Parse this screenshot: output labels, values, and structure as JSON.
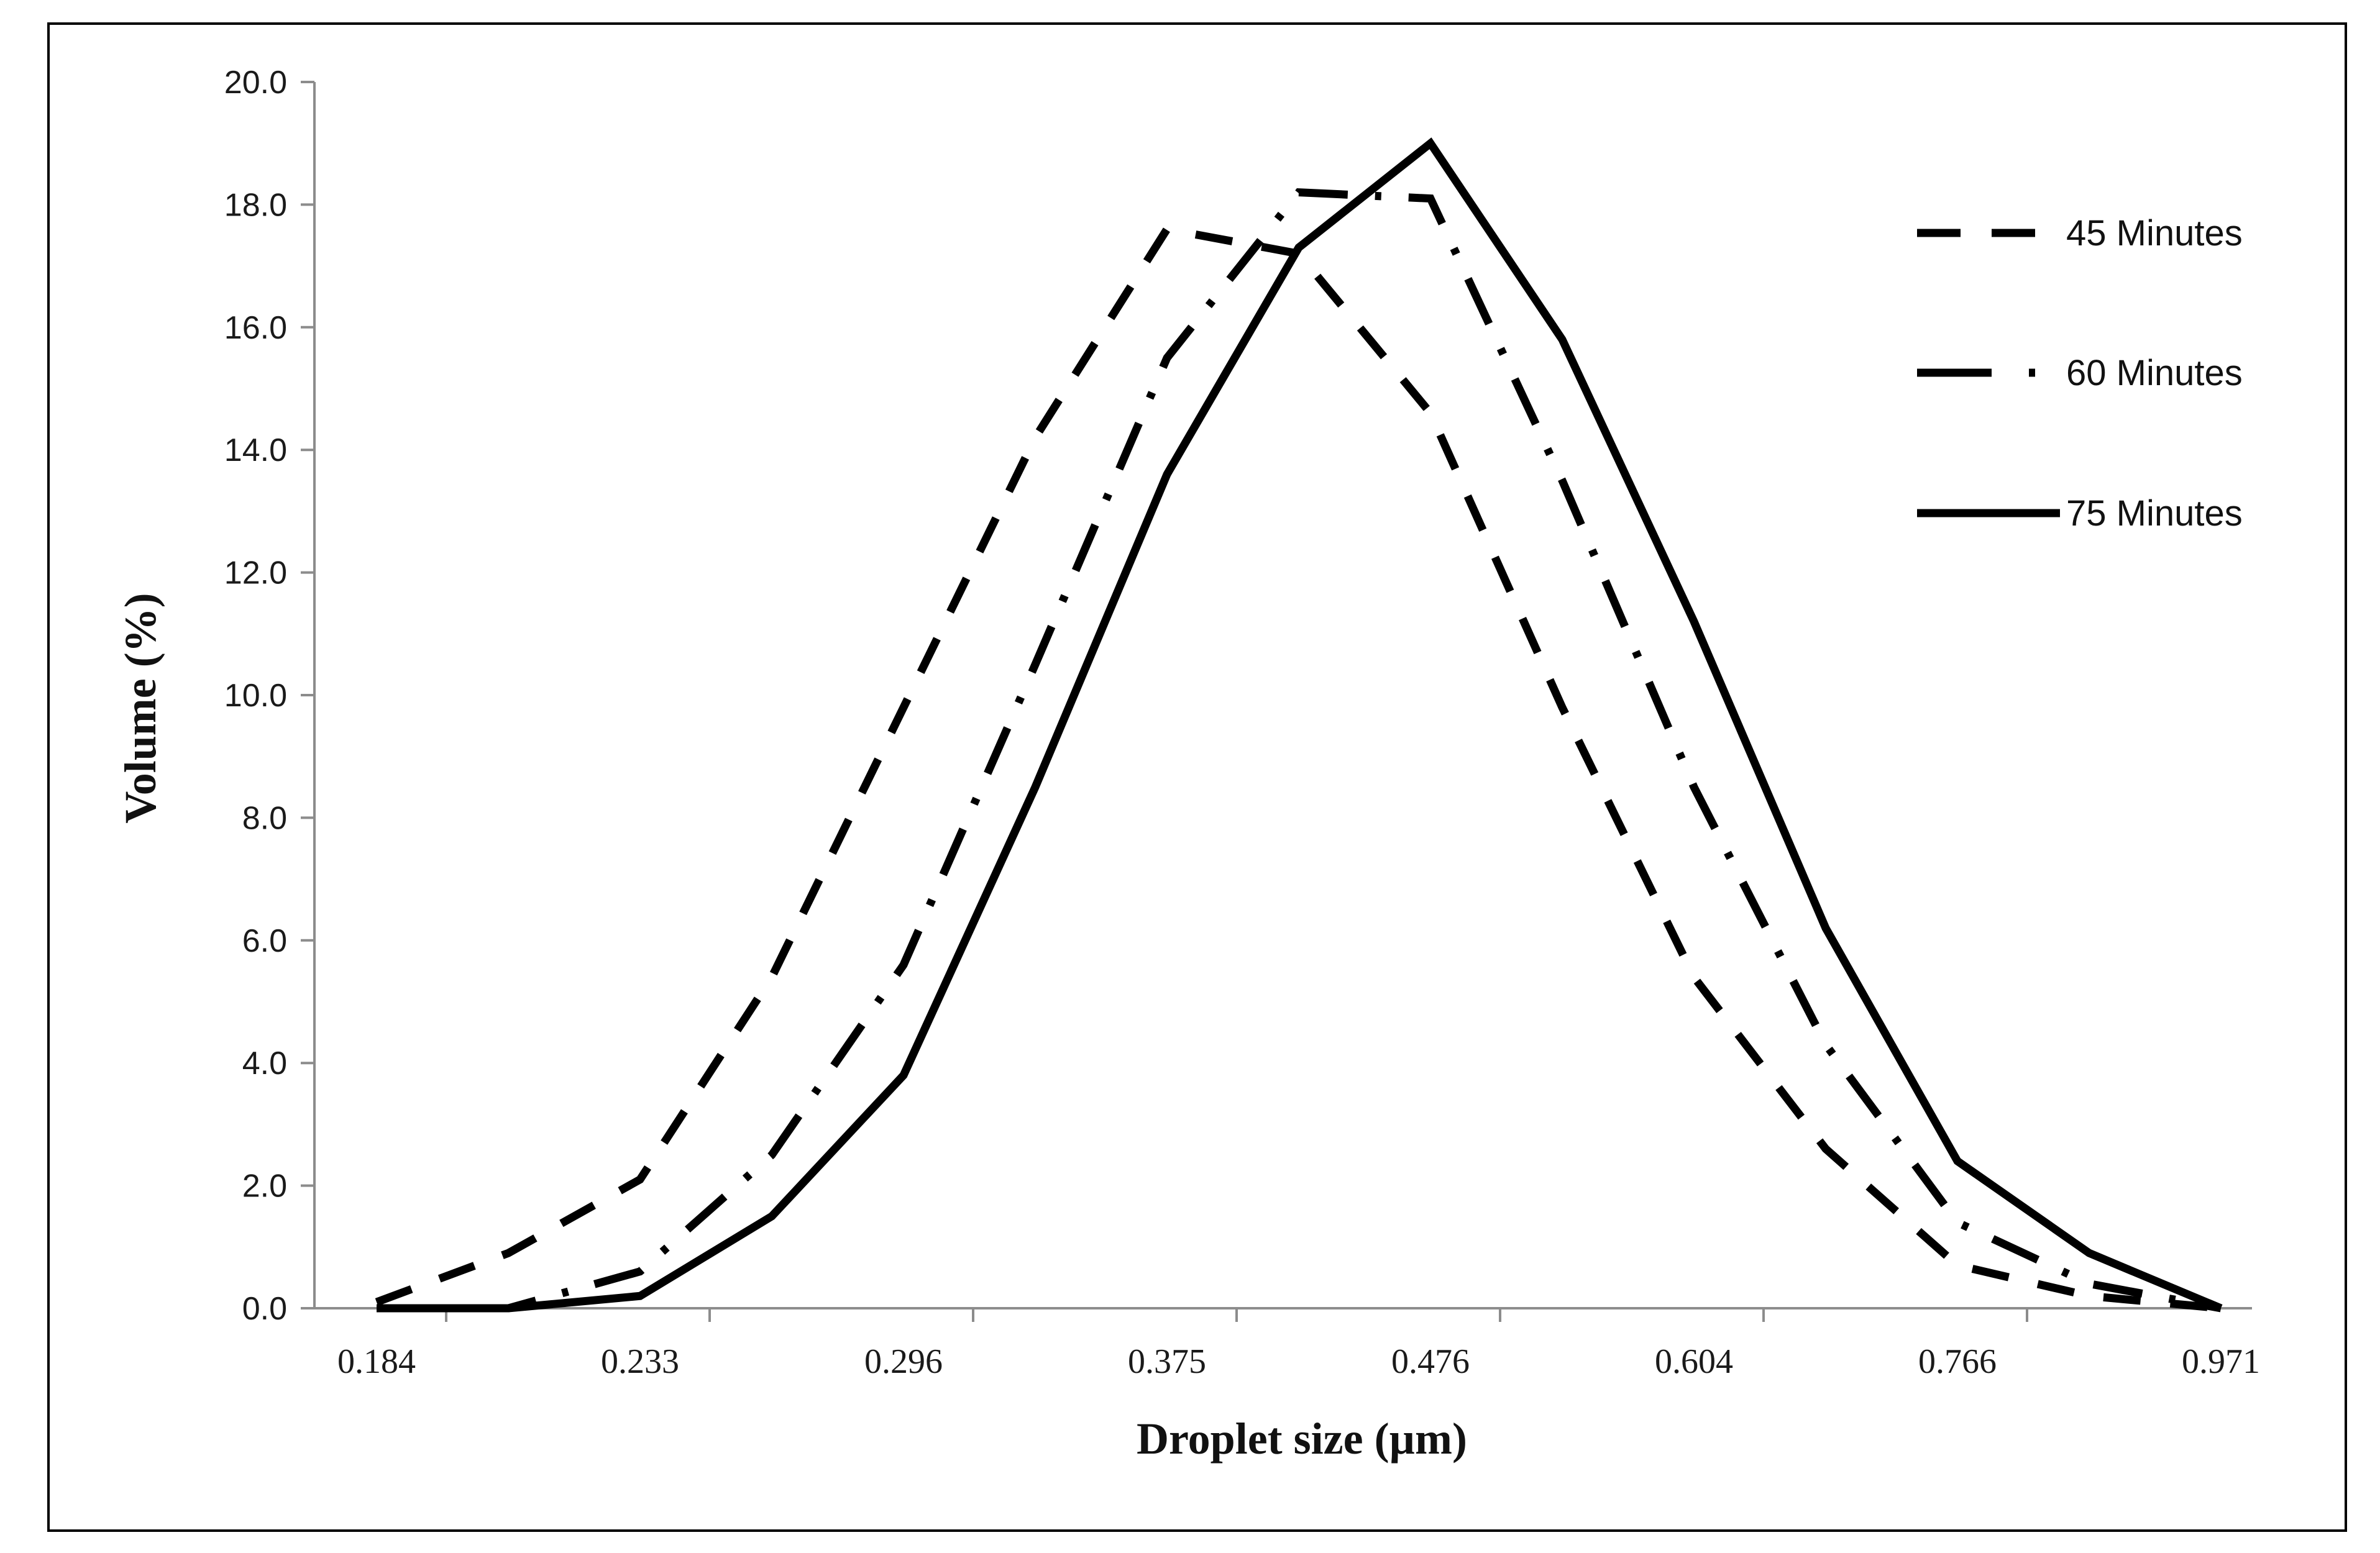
{
  "chart_data": {
    "type": "line",
    "title": "",
    "xlabel": "Droplet size (µm)",
    "ylabel": "Volume (%)",
    "ylim": [
      0,
      20
    ],
    "y_ticks": [
      "0.0",
      "2.0",
      "4.0",
      "6.0",
      "8.0",
      "10.0",
      "12.0",
      "14.0",
      "16.0",
      "18.0",
      "20.0"
    ],
    "x_tick_labels": [
      "0.184",
      "0.233",
      "0.296",
      "0.375",
      "0.476",
      "0.604",
      "0.766",
      "0.971"
    ],
    "categories": [
      "0.184",
      "0.207",
      "0.233",
      "0.263",
      "0.296",
      "0.334",
      "0.375",
      "0.423",
      "0.476",
      "0.536",
      "0.604",
      "0.681",
      "0.766",
      "0.863",
      "0.971"
    ],
    "grid": false,
    "legend_position": "top-right",
    "series": [
      {
        "name": "45 Minutes",
        "dash": "dashed",
        "values": [
          0.1,
          0.9,
          2.1,
          5.4,
          9.8,
          14.2,
          17.6,
          17.2,
          14.6,
          9.8,
          5.4,
          2.6,
          0.7,
          0.2,
          0.0
        ]
      },
      {
        "name": "60 Minutes",
        "dash": "dash-dot",
        "values": [
          0.0,
          0.0,
          0.6,
          2.5,
          5.6,
          10.5,
          15.5,
          18.2,
          18.1,
          13.5,
          8.5,
          4.3,
          1.4,
          0.4,
          0.0
        ]
      },
      {
        "name": "75 Minutes",
        "dash": "solid",
        "values": [
          0.0,
          0.0,
          0.2,
          1.5,
          3.8,
          8.5,
          13.6,
          17.3,
          19.0,
          15.8,
          11.2,
          6.2,
          2.4,
          0.9,
          0.0
        ]
      }
    ],
    "colors": {
      "line": "#000000",
      "axis": "#8c8c8c",
      "frame": "#000000"
    }
  }
}
